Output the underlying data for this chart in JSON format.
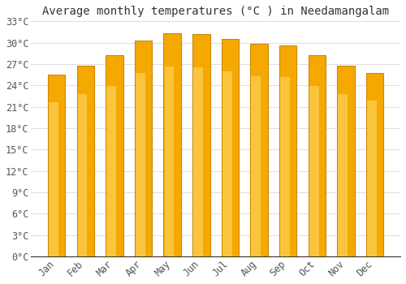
{
  "title": "Average monthly temperatures (°C ) in Needamangalam",
  "months": [
    "Jan",
    "Feb",
    "Mar",
    "Apr",
    "May",
    "Jun",
    "Jul",
    "Aug",
    "Sep",
    "Oct",
    "Nov",
    "Dec"
  ],
  "temperatures": [
    25.5,
    26.8,
    28.2,
    30.3,
    31.3,
    31.2,
    30.5,
    29.8,
    29.6,
    28.2,
    26.8,
    25.7
  ],
  "bar_color_main": "#F5A800",
  "bar_color_light": "#FFD966",
  "bar_color_edge": "#CC8800",
  "ylim": [
    0,
    33
  ],
  "yticks": [
    0,
    3,
    6,
    9,
    12,
    15,
    18,
    21,
    24,
    27,
    30,
    33
  ],
  "ytick_labels": [
    "0°C",
    "3°C",
    "6°C",
    "9°C",
    "12°C",
    "15°C",
    "18°C",
    "21°C",
    "24°C",
    "27°C",
    "30°C",
    "33°C"
  ],
  "bg_color": "#ffffff",
  "grid_color": "#dddddd",
  "title_fontsize": 10,
  "tick_fontsize": 8.5,
  "bar_width": 0.6
}
